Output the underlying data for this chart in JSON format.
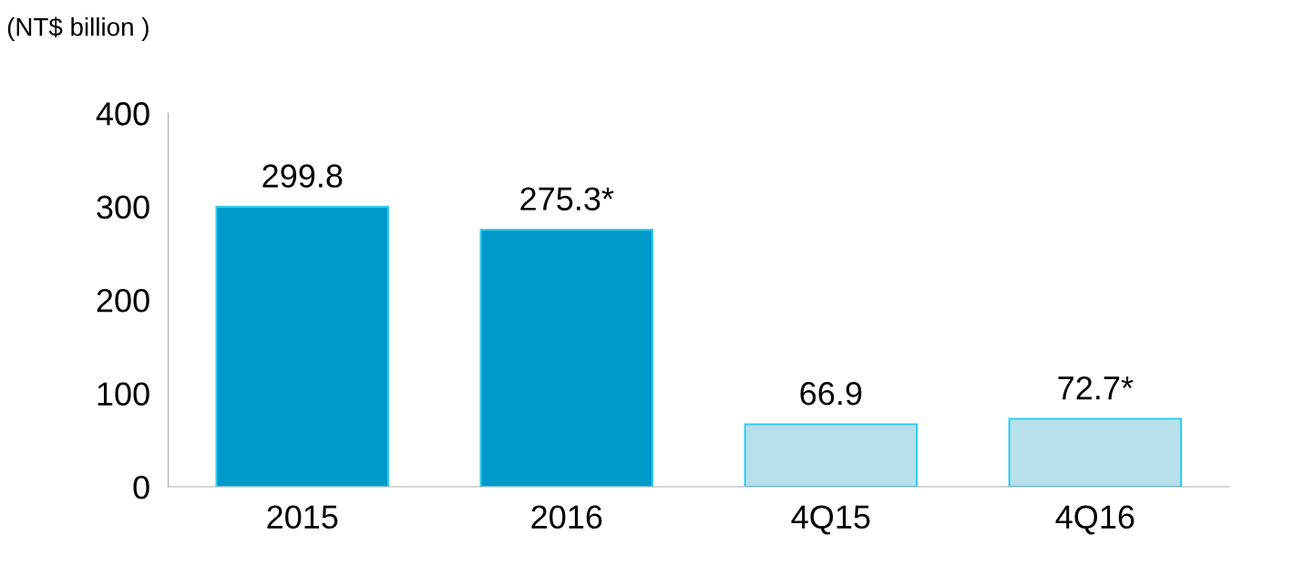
{
  "chart_data": {
    "type": "bar",
    "ylabel": "(NT$ billion )",
    "categories": [
      "2015",
      "2016",
      "4Q15",
      "4Q16"
    ],
    "values": [
      299.8,
      275.3,
      66.9,
      72.7
    ],
    "colors": [
      "#0099cc",
      "#0099cc",
      "#b8e0ea",
      "#b8e0ea"
    ],
    "value_labels": [
      "299.8",
      "275.3*",
      "66.9",
      "72.7*"
    ],
    "ylim": [
      0,
      400
    ],
    "yticks": [
      0,
      100,
      200,
      300,
      400
    ],
    "grid": false,
    "legend": false
  }
}
